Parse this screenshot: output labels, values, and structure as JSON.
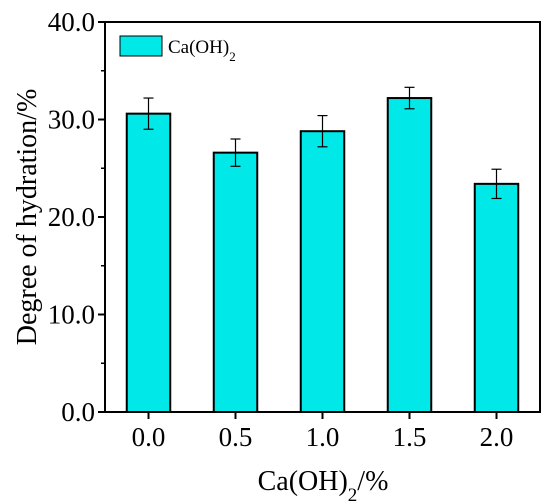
{
  "chart_data": {
    "type": "bar",
    "categories": [
      "0.0",
      "0.5",
      "1.0",
      "1.5",
      "2.0"
    ],
    "series": [
      {
        "name": "Ca(OH)2",
        "values": [
          30.6,
          26.6,
          28.8,
          32.2,
          23.4
        ],
        "errors": [
          1.6,
          1.4,
          1.6,
          1.1,
          1.5
        ]
      }
    ],
    "ylim": [
      0,
      40
    ],
    "yticks": [
      "0.0",
      "10.0",
      "20.0",
      "30.0",
      "40.0"
    ],
    "xlabel": "Ca(OH)2/%",
    "ylabel": "Degree of hydration/%",
    "legend_position": "top-left",
    "grid": false,
    "bar_color": "#00E8E8",
    "edge_color": "#000000"
  }
}
